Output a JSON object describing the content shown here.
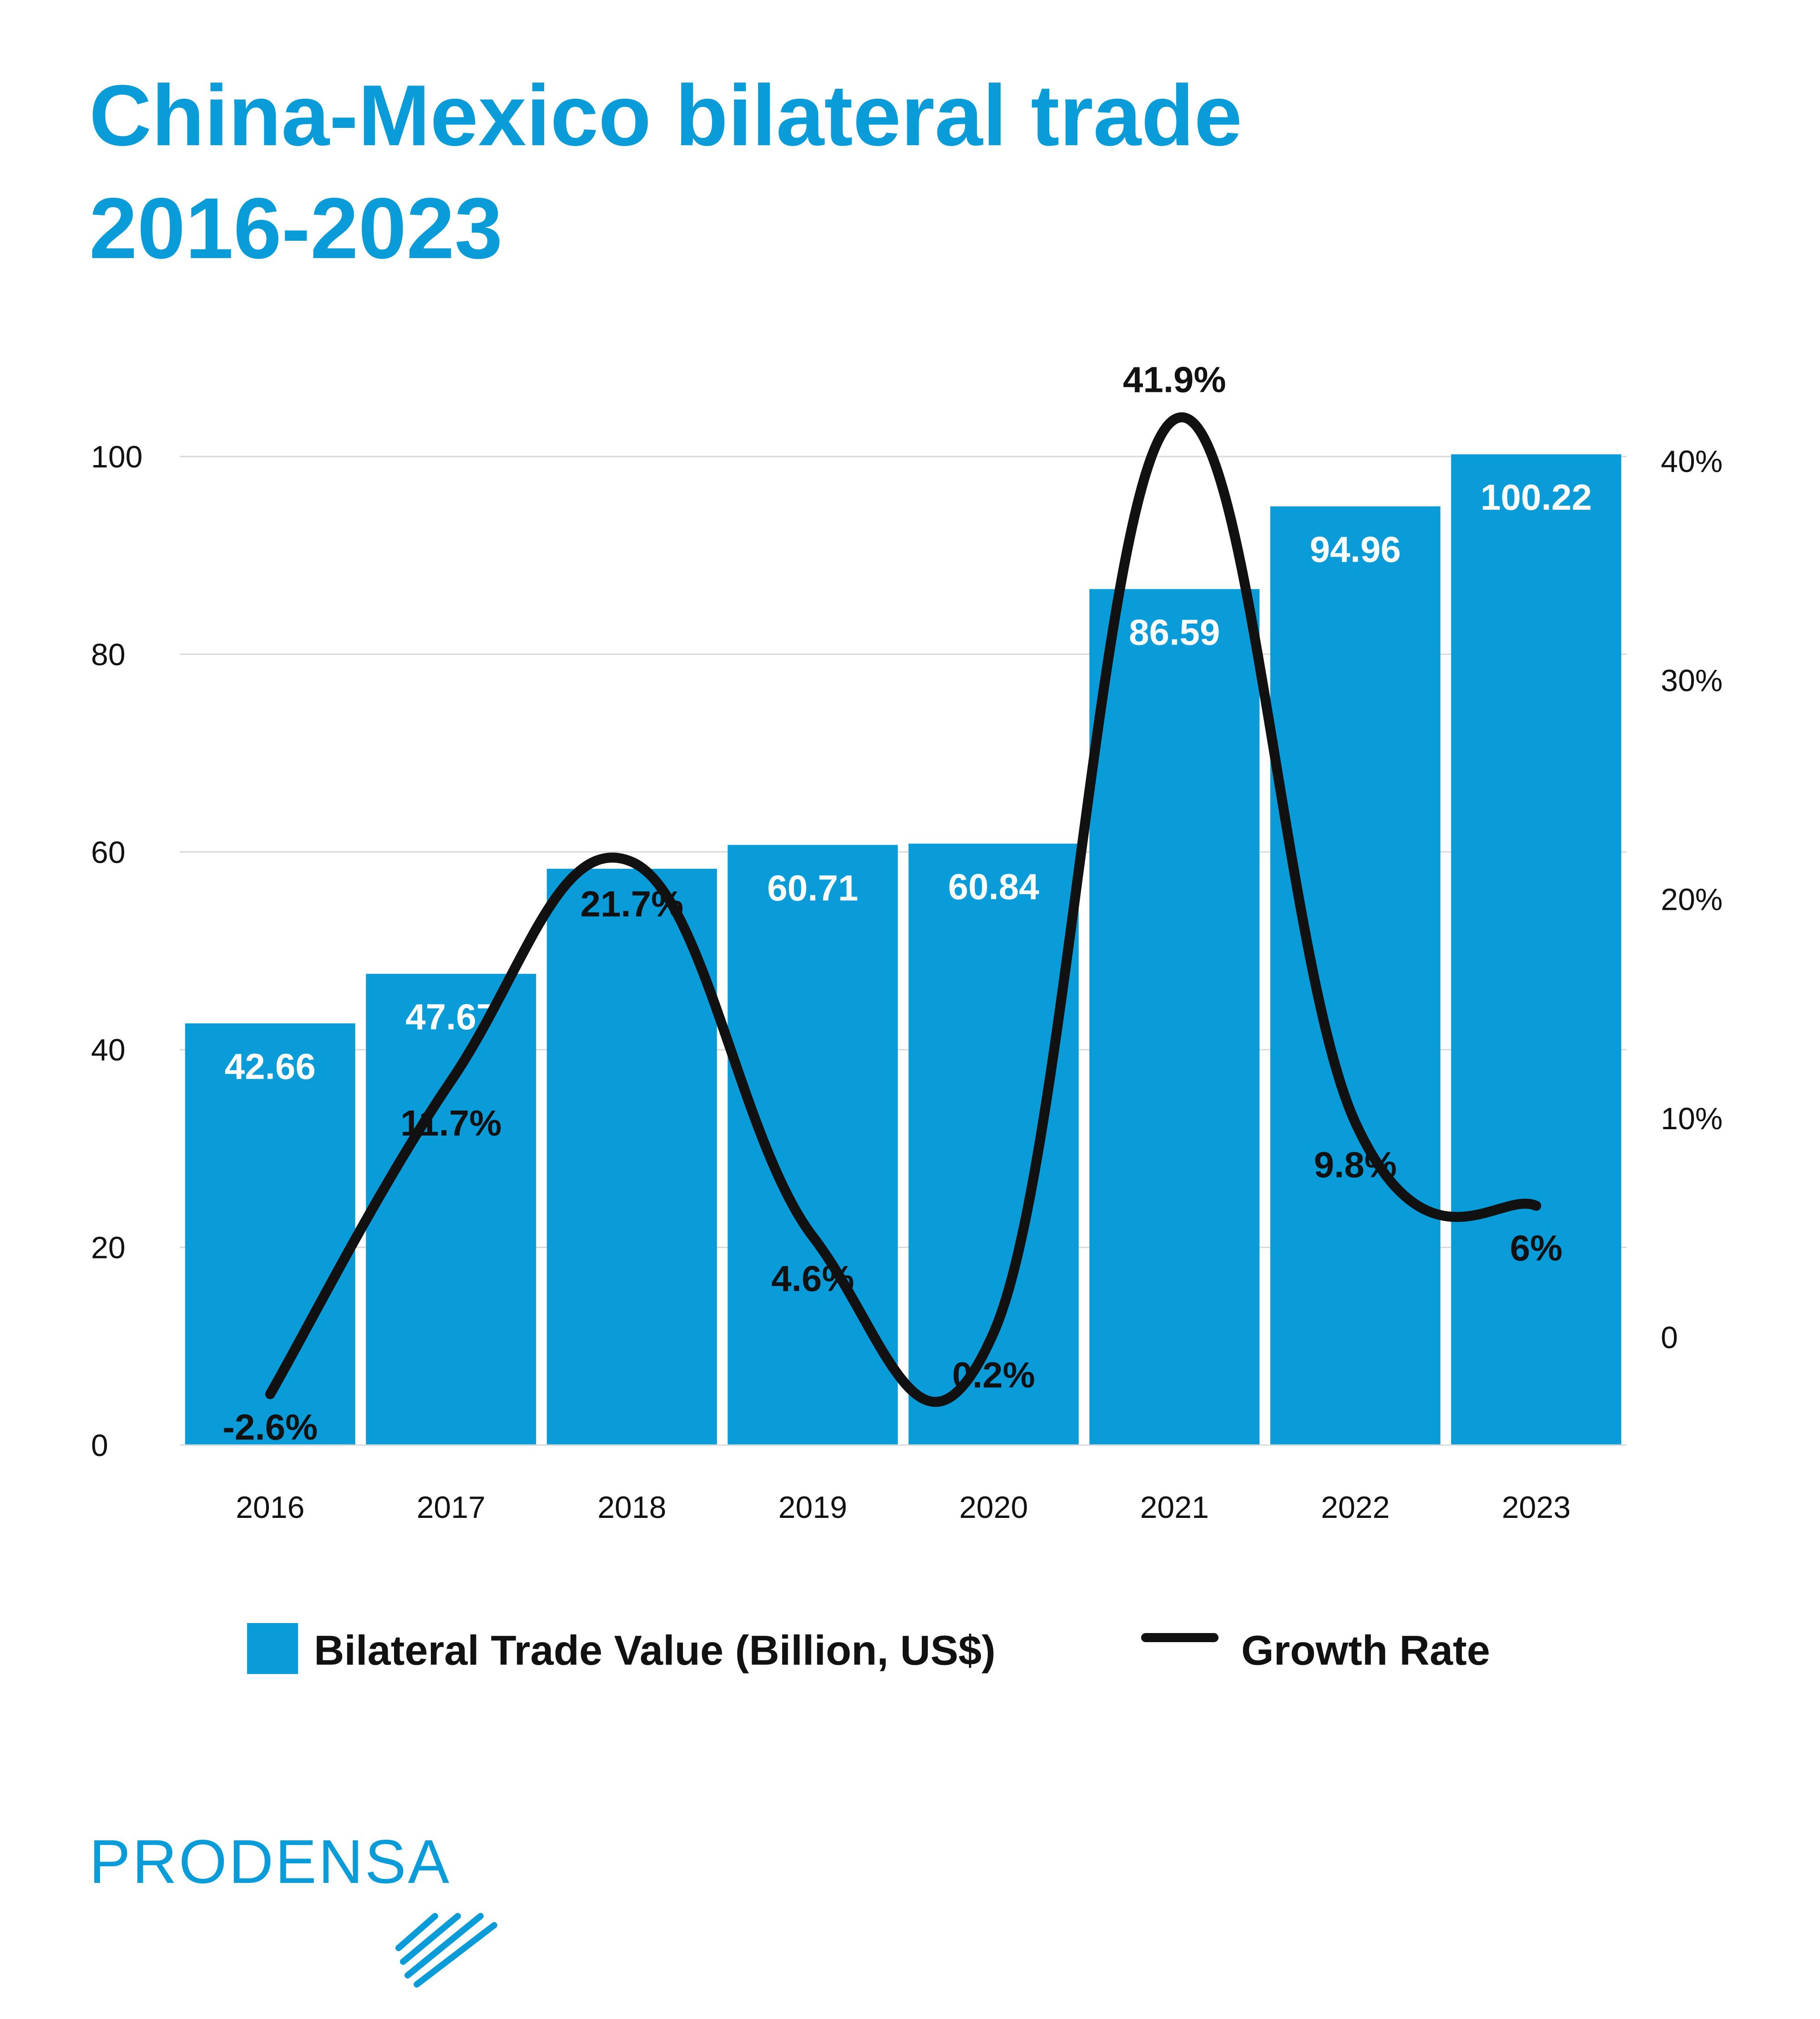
{
  "title_lines": [
    "China-Mexico bilateral trade",
    "2016-2023"
  ],
  "brand": {
    "logo_text": "PRODENSA",
    "color": "#0a9bd9"
  },
  "colors": {
    "bar": "#0a9bd9",
    "line": "#111111",
    "grid": "#d9d9d9"
  },
  "chart_data": {
    "type": "bar",
    "title": "China-Mexico bilateral trade 2016-2023",
    "categories": [
      "2016",
      "2017",
      "2018",
      "2019",
      "2020",
      "2021",
      "2022",
      "2023"
    ],
    "series": [
      {
        "name": "Bilateral Trade Value (Billion, US$)",
        "type": "bar",
        "axis": "left",
        "values": [
          42.66,
          47.67,
          58.3,
          60.71,
          60.84,
          86.59,
          94.96,
          100.22
        ],
        "labels": [
          "42.66",
          "47.67",
          "",
          "60.71",
          "60.84",
          "86.59",
          "94.96",
          "100.22"
        ]
      },
      {
        "name": "Growth Rate",
        "type": "line",
        "axis": "right",
        "values": [
          -2.6,
          11.7,
          21.7,
          4.6,
          0.2,
          41.9,
          9.8,
          6
        ],
        "labels": [
          "-2.6%",
          "11.7%",
          "21.7%",
          "4.6%",
          "0.2%",
          "41.9%",
          "9.8%",
          "6%"
        ]
      }
    ],
    "y_left": {
      "min": 0,
      "max": 100,
      "ticks": [
        "0",
        "20",
        "40",
        "60",
        "80",
        "100"
      ]
    },
    "y_right": {
      "min": -5,
      "max": 45,
      "ticks": [
        "0",
        "10%",
        "20%",
        "30%",
        "40%"
      ]
    },
    "grid": true,
    "legend": "bottom"
  }
}
